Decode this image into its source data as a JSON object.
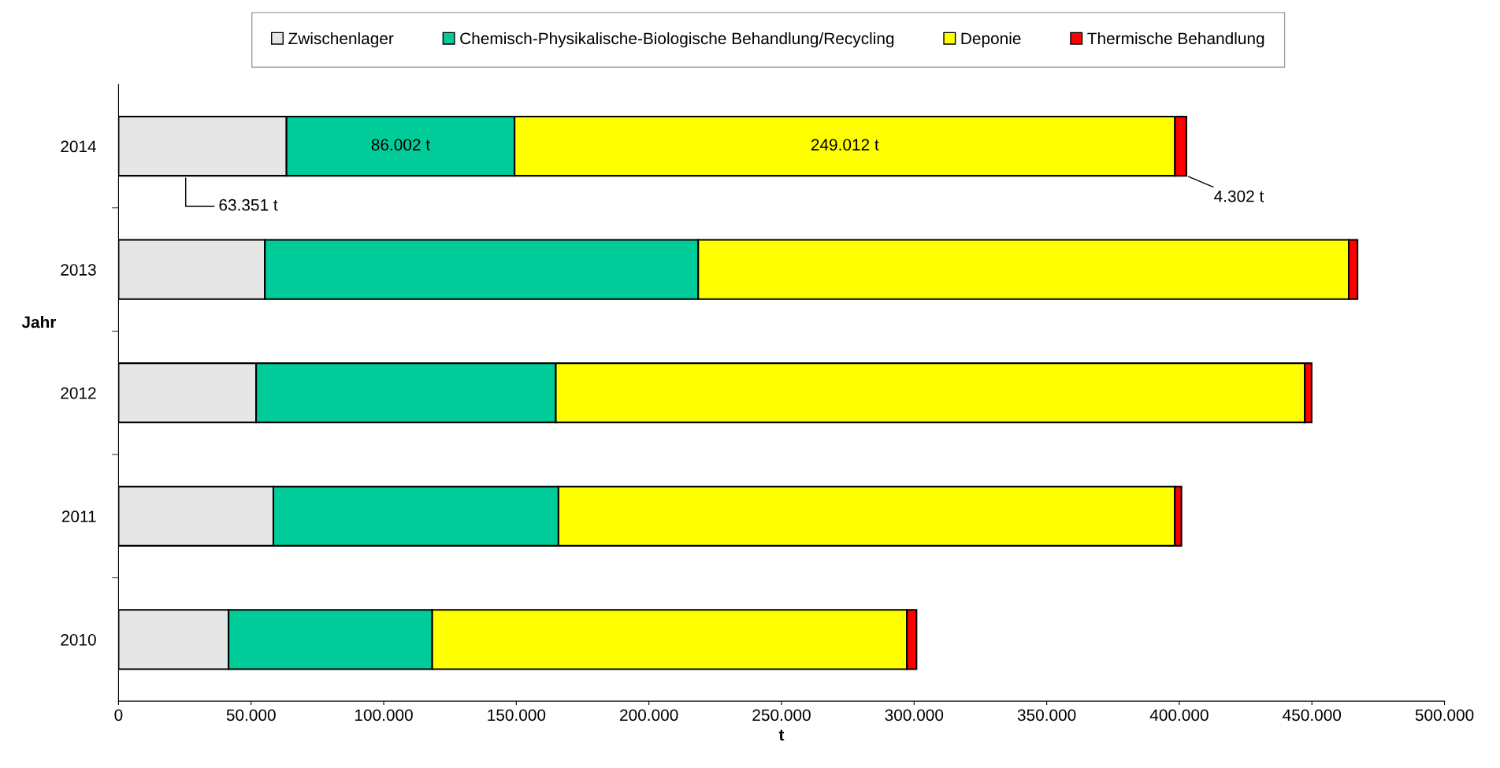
{
  "chart_data": {
    "type": "bar",
    "orientation": "horizontal",
    "stacked": true,
    "xlabel": "t",
    "ylabel": "Jahr",
    "categories": [
      "2014",
      "2013",
      "2012",
      "2011",
      "2010"
    ],
    "series": [
      {
        "name": "Zwischenlager",
        "color": "#e6e6e6",
        "values": [
          63351,
          55200,
          51900,
          58400,
          41500
        ],
        "value_labels": [
          "63.351 t",
          null,
          null,
          null,
          null
        ]
      },
      {
        "name": "Chemisch-Physikalische-Biologische Behandlung/Recycling",
        "color": "#00cc99",
        "values": [
          86002,
          163400,
          113000,
          107500,
          76800
        ],
        "value_labels": [
          "86.002 t",
          null,
          null,
          null,
          null
        ]
      },
      {
        "name": "Deponie",
        "color": "#ffff00",
        "values": [
          249012,
          245300,
          282400,
          232400,
          179000
        ],
        "value_labels": [
          "249.012 t",
          null,
          null,
          null,
          null
        ]
      },
      {
        "name": "Thermische Behandlung",
        "color": "#ff0000",
        "values": [
          4302,
          3300,
          2600,
          2500,
          3600
        ],
        "value_labels": [
          "4.302 t",
          null,
          null,
          null,
          null
        ]
      }
    ],
    "xlim": [
      0,
      500000
    ],
    "xticks": [
      0,
      {
        "value": 50000,
        "label": "50.000"
      },
      {
        "value": 100000,
        "label": "100.000"
      },
      {
        "value": 150000,
        "label": "150.000"
      },
      {
        "value": 200000,
        "label": "200.000"
      },
      {
        "value": 250000,
        "label": "250.000"
      },
      {
        "value": 300000,
        "label": "300.000"
      },
      {
        "value": 350000,
        "label": "350.000"
      },
      {
        "value": 400000,
        "label": "400.000"
      },
      {
        "value": 450000,
        "label": "450.000"
      },
      {
        "value": 500000,
        "label": "500.000"
      }
    ],
    "grid": false,
    "legend": "top"
  }
}
